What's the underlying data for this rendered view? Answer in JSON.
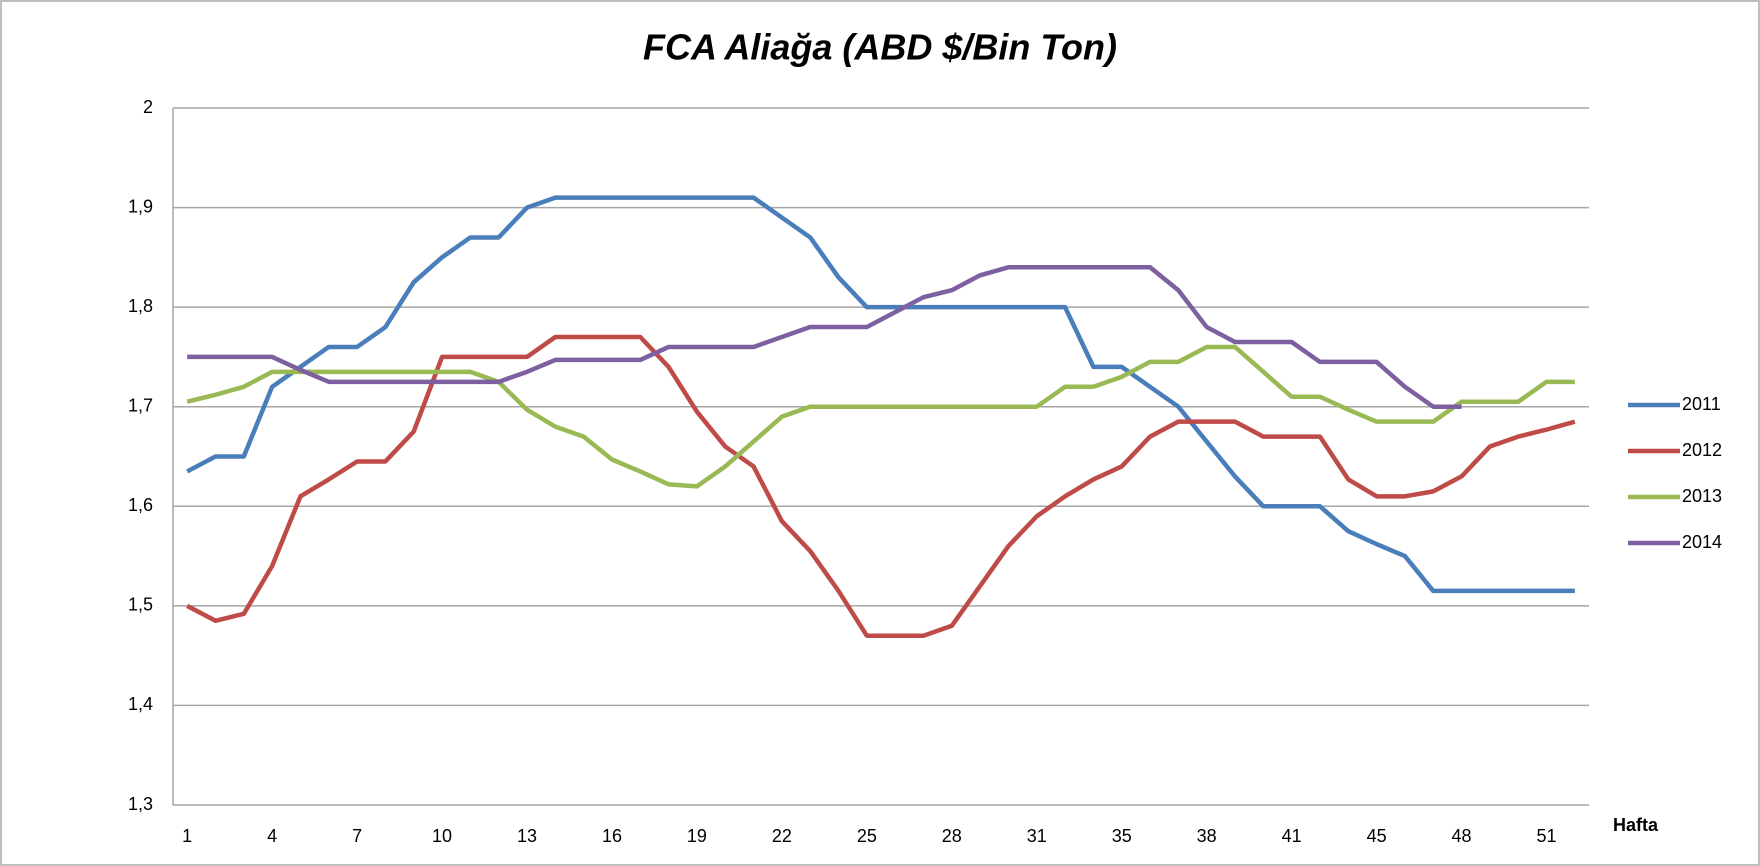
{
  "chart_data": {
    "type": "line",
    "title": "FCA Aliağa (ABD $/Bin Ton)",
    "x_label": "Hafta",
    "categories": [
      "1",
      null,
      null,
      "4",
      null,
      null,
      "7",
      null,
      null,
      "10",
      null,
      null,
      "13",
      null,
      null,
      "16",
      null,
      null,
      "19",
      null,
      null,
      "22",
      null,
      null,
      "25",
      null,
      null,
      "28",
      null,
      null,
      "31",
      null,
      null,
      "35",
      null,
      null,
      "38",
      null,
      null,
      "41",
      null,
      null,
      "45",
      null,
      null,
      "48",
      null,
      null,
      "51",
      null
    ],
    "ylim": [
      1.3,
      2
    ],
    "yticks": [
      {
        "value": 1.3,
        "label": "1,3"
      },
      {
        "value": 1.4,
        "label": "1,4"
      },
      {
        "value": 1.5,
        "label": "1,5"
      },
      {
        "value": 1.6,
        "label": "1,6"
      },
      {
        "value": 1.7,
        "label": "1,7"
      },
      {
        "value": 1.8,
        "label": "1,8"
      },
      {
        "value": 1.9,
        "label": "1,9"
      },
      2
    ],
    "grid": true,
    "legend": "right",
    "series": [
      {
        "name": "2011",
        "color": "#4a7ebb",
        "values": [
          1.635,
          1.65,
          1.65,
          1.72,
          1.74,
          1.76,
          1.76,
          1.78,
          1.825,
          1.85,
          1.87,
          1.87,
          1.9,
          1.91,
          1.91,
          1.91,
          1.91,
          1.91,
          1.91,
          1.91,
          1.91,
          1.89,
          1.87,
          1.83,
          1.8,
          1.8,
          1.8,
          1.8,
          1.8,
          1.8,
          1.8,
          1.8,
          1.74,
          1.74,
          1.72,
          1.7,
          1.665,
          1.63,
          1.6,
          1.6,
          1.6,
          1.575,
          1.562,
          1.55,
          1.515,
          1.515,
          1.515,
          1.515,
          1.515,
          1.515
        ]
      },
      {
        "name": "2012",
        "color": "#be4b48",
        "values": [
          1.5,
          1.485,
          1.492,
          1.54,
          1.61,
          1.627,
          1.645,
          1.645,
          1.675,
          1.75,
          1.75,
          1.75,
          1.75,
          1.77,
          1.77,
          1.77,
          1.77,
          1.74,
          1.695,
          1.66,
          1.64,
          1.585,
          1.555,
          1.515,
          1.47,
          1.47,
          1.47,
          1.48,
          1.52,
          1.56,
          1.59,
          1.61,
          1.627,
          1.64,
          1.67,
          1.685,
          1.685,
          1.685,
          1.67,
          1.67,
          1.67,
          1.627,
          1.61,
          1.61,
          1.615,
          1.63,
          1.66,
          1.67,
          1.677,
          1.685
        ]
      },
      {
        "name": "2013",
        "color": "#98b954",
        "values": [
          1.705,
          1.712,
          1.72,
          1.735,
          1.735,
          1.735,
          1.735,
          1.735,
          1.735,
          1.735,
          1.735,
          1.725,
          1.697,
          1.68,
          1.67,
          1.647,
          1.635,
          1.622,
          1.62,
          1.64,
          1.665,
          1.69,
          1.7,
          1.7,
          1.7,
          1.7,
          1.7,
          1.7,
          1.7,
          1.7,
          1.7,
          1.72,
          1.72,
          1.73,
          1.745,
          1.745,
          1.76,
          1.76,
          1.735,
          1.71,
          1.71,
          1.697,
          1.685,
          1.685,
          1.685,
          1.705,
          1.705,
          1.705,
          1.725,
          1.725
        ]
      },
      {
        "name": "2014",
        "color": "#7d60a0",
        "values": [
          1.75,
          1.75,
          1.75,
          1.75,
          1.737,
          1.725,
          1.725,
          1.725,
          1.725,
          1.725,
          1.725,
          1.725,
          1.735,
          1.747,
          1.747,
          1.747,
          1.747,
          1.76,
          1.76,
          1.76,
          1.76,
          1.77,
          1.78,
          1.78,
          1.78,
          1.795,
          1.81,
          1.817,
          1.832,
          1.84,
          1.84,
          1.84,
          1.84,
          1.84,
          1.84,
          1.817,
          1.78,
          1.765,
          1.765,
          1.765,
          1.745,
          1.745,
          1.745,
          1.72,
          1.7,
          1.7,
          null,
          null,
          null,
          null
        ]
      }
    ]
  }
}
